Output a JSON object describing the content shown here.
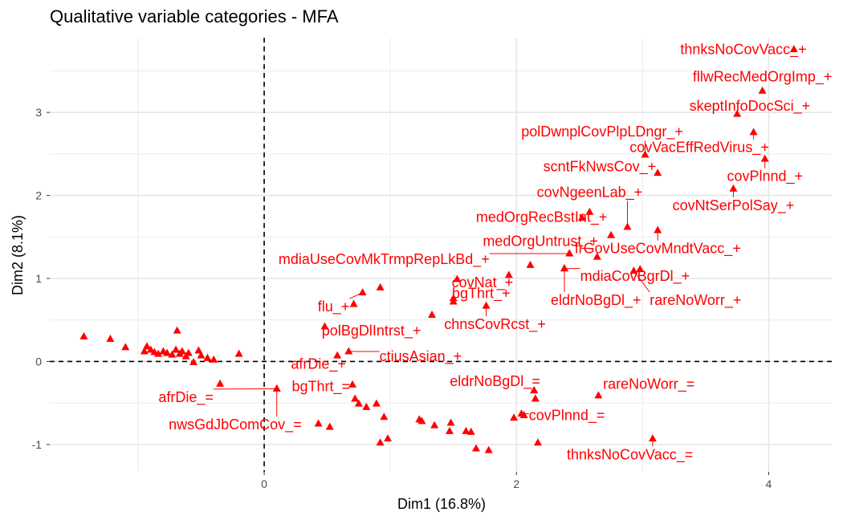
{
  "chart_data": {
    "type": "scatter",
    "title": "Qualitative variable categories - MFA",
    "xlabel": "Dim1 (16.8%)",
    "ylabel": "Dim2 (8.1%)",
    "xlim": [
      -1.7,
      4.5
    ],
    "ylim": [
      -1.33,
      3.9
    ],
    "x_ticks": [
      {
        "v": 0,
        "label": "0"
      },
      {
        "v": 2,
        "label": "2"
      },
      {
        "v": 4,
        "label": "4"
      }
    ],
    "y_ticks": [
      {
        "v": -1,
        "label": "-1"
      },
      {
        "v": 0,
        "label": "0"
      },
      {
        "v": 1,
        "label": "1"
      },
      {
        "v": 2,
        "label": "2"
      },
      {
        "v": 3,
        "label": "3"
      }
    ],
    "grid": true,
    "reference_lines": {
      "x": 0,
      "y": 0,
      "style": "dashed"
    },
    "point_color": "#ff0000",
    "labeled_points": [
      {
        "x": 4.2,
        "y": 3.76,
        "label": "thnksNoCovVacc_+",
        "lx": 3.8,
        "ly": 3.76
      },
      {
        "x": 3.95,
        "y": 3.26,
        "label": "fllwRecMedOrgImp_+",
        "lx": 3.95,
        "ly": 3.43
      },
      {
        "x": 3.75,
        "y": 2.98,
        "label": "skeptInfoDocSci_+",
        "lx": 3.85,
        "ly": 3.08
      },
      {
        "x": 3.02,
        "y": 2.49,
        "label": "polDwnplCovPlpLDngr_+",
        "lx": 2.68,
        "ly": 2.77
      },
      {
        "x": 3.88,
        "y": 2.76,
        "label": "covVacEffRedVirus_+",
        "lx": 3.45,
        "ly": 2.58
      },
      {
        "x": 3.12,
        "y": 2.27,
        "label": "scntFkNwsCov_+",
        "lx": 2.66,
        "ly": 2.35
      },
      {
        "x": 3.97,
        "y": 2.44,
        "label": "covPlnnd_+",
        "lx": 3.97,
        "ly": 2.23
      },
      {
        "x": 2.88,
        "y": 1.62,
        "label": "covNgeenLab_+",
        "lx": 2.58,
        "ly": 2.04
      },
      {
        "x": 3.72,
        "y": 2.08,
        "label": "covNtSerPolSay_+",
        "lx": 3.72,
        "ly": 1.88
      },
      {
        "x": 2.58,
        "y": 1.8,
        "label": "medOrgRecBstInt_+",
        "lx": 2.2,
        "ly": 1.74
      },
      {
        "x": 2.52,
        "y": 1.73,
        "label": "",
        "lx": 0,
        "ly": 0
      },
      {
        "x": 3.12,
        "y": 1.58,
        "label": "frGovUseCovMndtVacc_+",
        "lx": 3.12,
        "ly": 1.36
      },
      {
        "x": 2.75,
        "y": 1.52,
        "label": "",
        "lx": 0,
        "ly": 0
      },
      {
        "x": 2.42,
        "y": 1.3,
        "label": "medOrgUntrust_+",
        "lx": 2.19,
        "ly": 1.45
      },
      {
        "x": 2.64,
        "y": 1.26,
        "label": "",
        "lx": 0,
        "ly": 0
      },
      {
        "x": 2.11,
        "y": 1.16,
        "label": "",
        "lx": 0,
        "ly": 0
      },
      {
        "x": 2.42,
        "y": 1.3,
        "label": "mdiaUseCovMkTrmpRepLkBd_+",
        "lx": 0.95,
        "ly": 1.23
      },
      {
        "x": 2.98,
        "y": 1.11,
        "label": "",
        "lx": 0,
        "ly": 0
      },
      {
        "x": 2.38,
        "y": 1.12,
        "label": "mdiaCovBgrDl_+",
        "lx": 2.94,
        "ly": 1.03
      },
      {
        "x": 1.94,
        "y": 1.04,
        "label": "covNat_+",
        "lx": 1.73,
        "ly": 0.95
      },
      {
        "x": 1.53,
        "y": 0.99,
        "label": "",
        "lx": 0,
        "ly": 0
      },
      {
        "x": 2.93,
        "y": 1.09,
        "label": "rareNoWorr_+",
        "lx": 3.42,
        "ly": 0.74
      },
      {
        "x": 2.38,
        "y": 1.12,
        "label": "eldrNoBgDl_+",
        "lx": 2.63,
        "ly": 0.74
      },
      {
        "x": 1.5,
        "y": 0.76,
        "label": "bgThrt_+",
        "lx": 1.72,
        "ly": 0.82
      },
      {
        "x": 1.76,
        "y": 0.67,
        "label": "chnsCovRcst_+",
        "lx": 1.83,
        "ly": 0.45
      },
      {
        "x": 1.5,
        "y": 0.72,
        "label": "",
        "lx": 0,
        "ly": 0
      },
      {
        "x": 1.33,
        "y": 0.56,
        "label": "",
        "lx": 0,
        "ly": 0
      },
      {
        "x": 0.92,
        "y": 0.89,
        "label": "",
        "lx": 0,
        "ly": 0
      },
      {
        "x": 0.78,
        "y": 0.83,
        "label": "flu_+",
        "lx": 0.55,
        "ly": 0.66
      },
      {
        "x": 0.71,
        "y": 0.69,
        "label": "",
        "lx": 0,
        "ly": 0
      },
      {
        "x": 0.48,
        "y": 0.42,
        "label": "polBgDlIntrst_+",
        "lx": 0.85,
        "ly": 0.37
      },
      {
        "x": 0.67,
        "y": 0.12,
        "label": "ctiusAsian_+",
        "lx": 1.24,
        "ly": 0.06
      },
      {
        "x": 0.58,
        "y": 0.07,
        "label": "afrDie_+",
        "lx": 0.43,
        "ly": -0.03
      },
      {
        "x": 0.1,
        "y": -0.33,
        "label": "afrDie_=",
        "lx": -0.62,
        "ly": -0.43
      },
      {
        "x": 0.1,
        "y": -0.33,
        "label": "nwsGdJbComCov_=",
        "lx": -0.23,
        "ly": -0.76
      },
      {
        "x": 2.14,
        "y": -0.35,
        "label": "eldrNoBgDl_=",
        "lx": 1.83,
        "ly": -0.24
      },
      {
        "x": 2.65,
        "y": -0.41,
        "label": "rareNoWorr_=",
        "lx": 3.05,
        "ly": -0.27
      },
      {
        "x": 0.7,
        "y": -0.28,
        "label": "bgThrt_=",
        "lx": 0.45,
        "ly": -0.3
      },
      {
        "x": 2.15,
        "y": -0.45,
        "label": "",
        "lx": 0,
        "ly": 0
      },
      {
        "x": 2.04,
        "y": -0.63,
        "label": "covPlnnd_=",
        "lx": 2.4,
        "ly": -0.65
      },
      {
        "x": 3.08,
        "y": -0.93,
        "label": "thnksNoCovVacc_=",
        "lx": 2.9,
        "ly": -1.12
      }
    ],
    "unlabeled_points": [
      [
        -1.43,
        0.3
      ],
      [
        -1.22,
        0.27
      ],
      [
        -1.1,
        0.17
      ],
      [
        -0.95,
        0.12
      ],
      [
        -0.93,
        0.18
      ],
      [
        -0.9,
        0.14
      ],
      [
        -0.87,
        0.11
      ],
      [
        -0.84,
        0.09
      ],
      [
        -0.8,
        0.12
      ],
      [
        -0.77,
        0.1
      ],
      [
        -0.73,
        0.08
      ],
      [
        -0.7,
        0.14
      ],
      [
        -0.69,
        0.37
      ],
      [
        -0.67,
        0.09
      ],
      [
        -0.65,
        0.12
      ],
      [
        -0.62,
        0.06
      ],
      [
        -0.6,
        0.1
      ],
      [
        -0.56,
        -0.01
      ],
      [
        -0.52,
        0.13
      ],
      [
        -0.5,
        0.07
      ],
      [
        -0.45,
        0.04
      ],
      [
        -0.4,
        0.02
      ],
      [
        -0.35,
        -0.27
      ],
      [
        -0.2,
        0.09
      ],
      [
        0.72,
        -0.45
      ],
      [
        0.75,
        -0.51
      ],
      [
        0.81,
        -0.55
      ],
      [
        0.89,
        -0.51
      ],
      [
        0.95,
        -0.67
      ],
      [
        0.98,
        -0.93
      ],
      [
        0.52,
        -0.79
      ],
      [
        0.43,
        -0.75
      ],
      [
        0.92,
        -0.98
      ],
      [
        1.23,
        -0.7
      ],
      [
        1.25,
        -0.72
      ],
      [
        1.35,
        -0.77
      ],
      [
        1.48,
        -0.74
      ],
      [
        1.47,
        -0.84
      ],
      [
        1.6,
        -0.84
      ],
      [
        1.64,
        -0.85
      ],
      [
        1.68,
        -1.05
      ],
      [
        1.78,
        -1.07
      ],
      [
        1.98,
        -0.68
      ],
      [
        2.06,
        -0.65
      ],
      [
        2.17,
        -0.98
      ],
      [
        2.14,
        -0.35
      ],
      [
        2.15,
        -0.45
      ]
    ]
  }
}
